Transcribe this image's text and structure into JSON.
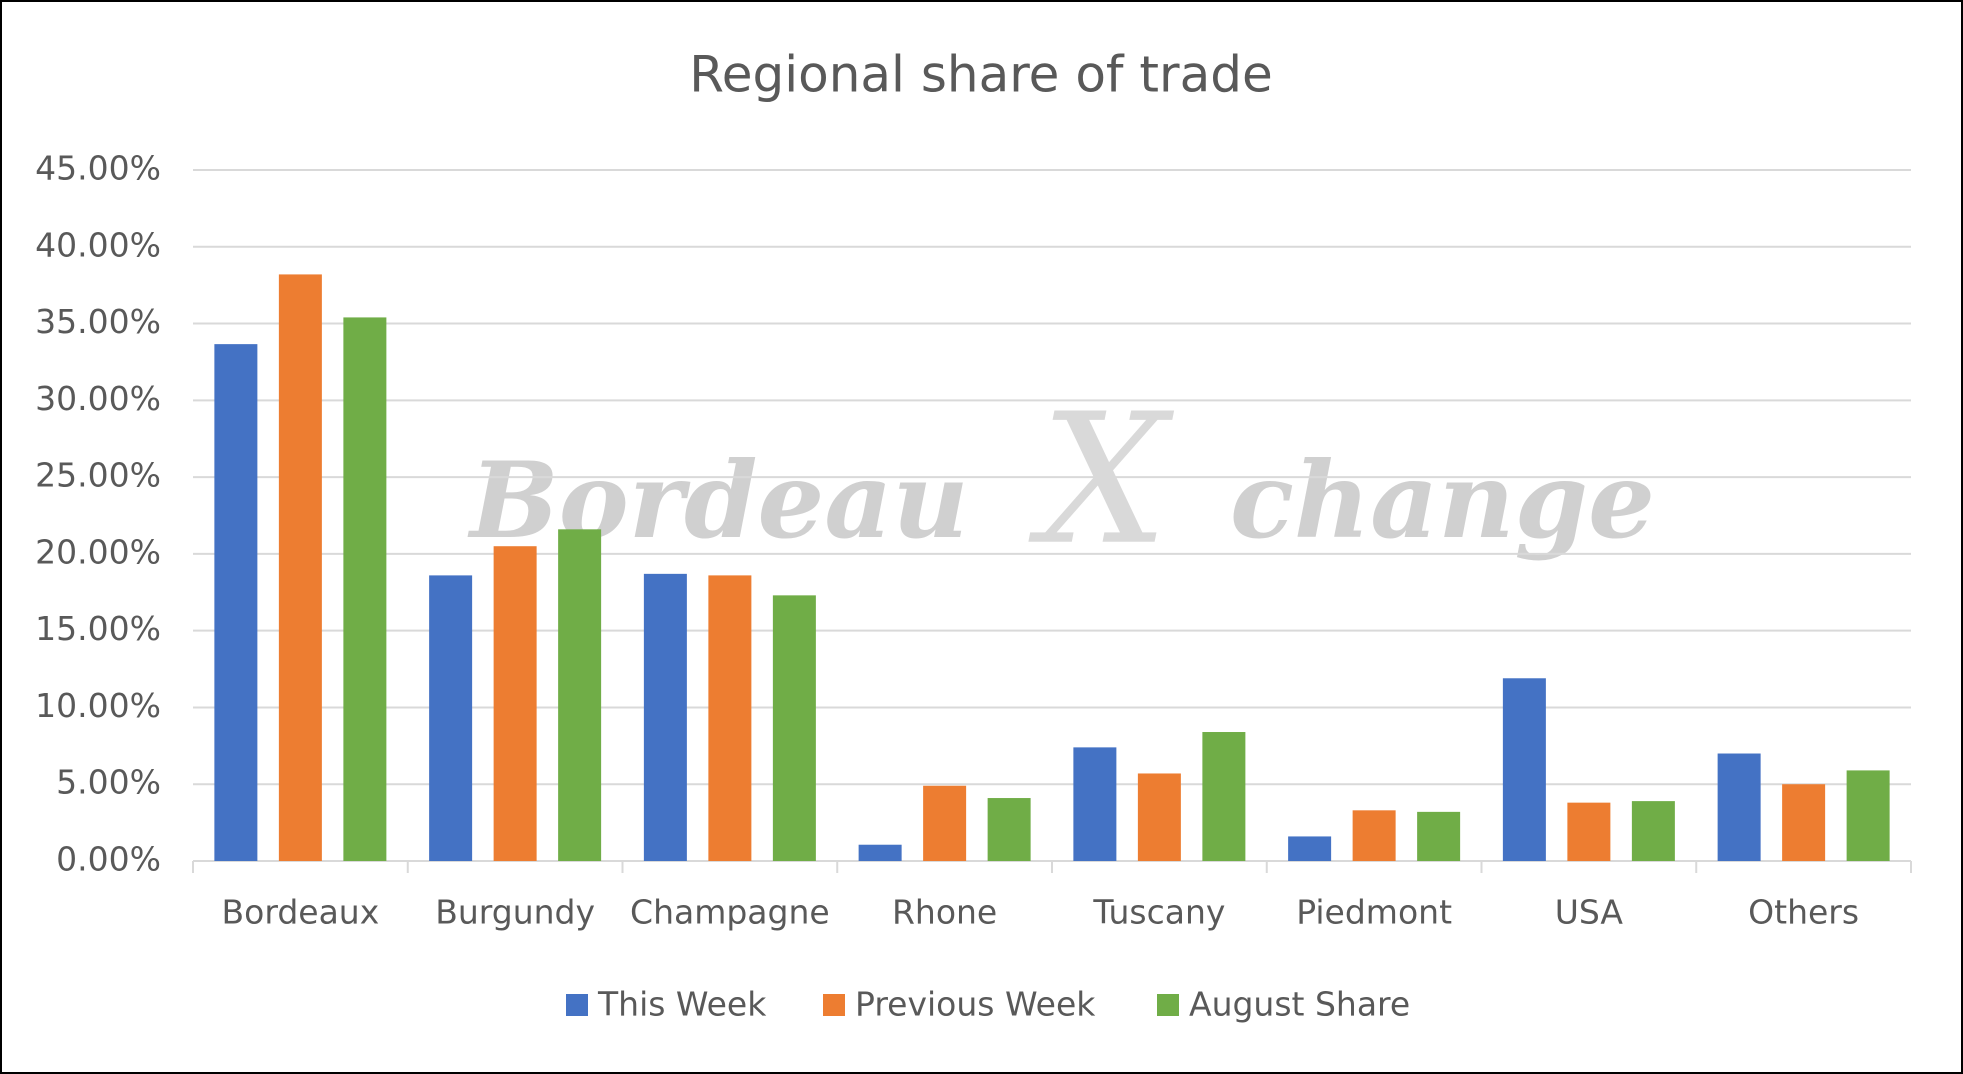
{
  "chart_data": {
    "type": "bar",
    "title": "Regional share of trade",
    "watermark": [
      "Bordeau",
      "X",
      "change"
    ],
    "categories": [
      "Bordeaux",
      "Burgundy",
      "Champagne",
      "Rhone",
      "Tuscany",
      "Piedmont",
      "USA",
      "Others"
    ],
    "series": [
      {
        "name": "This Week",
        "color": "#4472c4",
        "values": [
          33.66,
          18.6,
          18.7,
          1.06,
          7.4,
          1.6,
          11.9,
          7.0
        ]
      },
      {
        "name": "Previous Week",
        "color": "#ed7d31",
        "values": [
          38.2,
          20.5,
          18.6,
          4.9,
          5.7,
          3.3,
          3.8,
          5.0
        ]
      },
      {
        "name": "August Share",
        "color": "#70ad47",
        "values": [
          35.4,
          21.6,
          17.3,
          4.1,
          8.4,
          3.2,
          3.9,
          5.9
        ]
      }
    ],
    "ylim": [
      0,
      45
    ],
    "yticks": [
      {
        "value": 0,
        "label": "0.00%"
      },
      {
        "value": 5,
        "label": "5.00%"
      },
      {
        "value": 10,
        "label": "10.00%"
      },
      {
        "value": 15,
        "label": "15.00%"
      },
      {
        "value": 20,
        "label": "20.00%"
      },
      {
        "value": 25,
        "label": "25.00%"
      },
      {
        "value": 30,
        "label": "30.00%"
      },
      {
        "value": 35,
        "label": "35.00%"
      },
      {
        "value": 40,
        "label": "40.00%"
      },
      {
        "value": 45,
        "label": "45.00%"
      }
    ],
    "grid": true,
    "legend": "bottom"
  }
}
